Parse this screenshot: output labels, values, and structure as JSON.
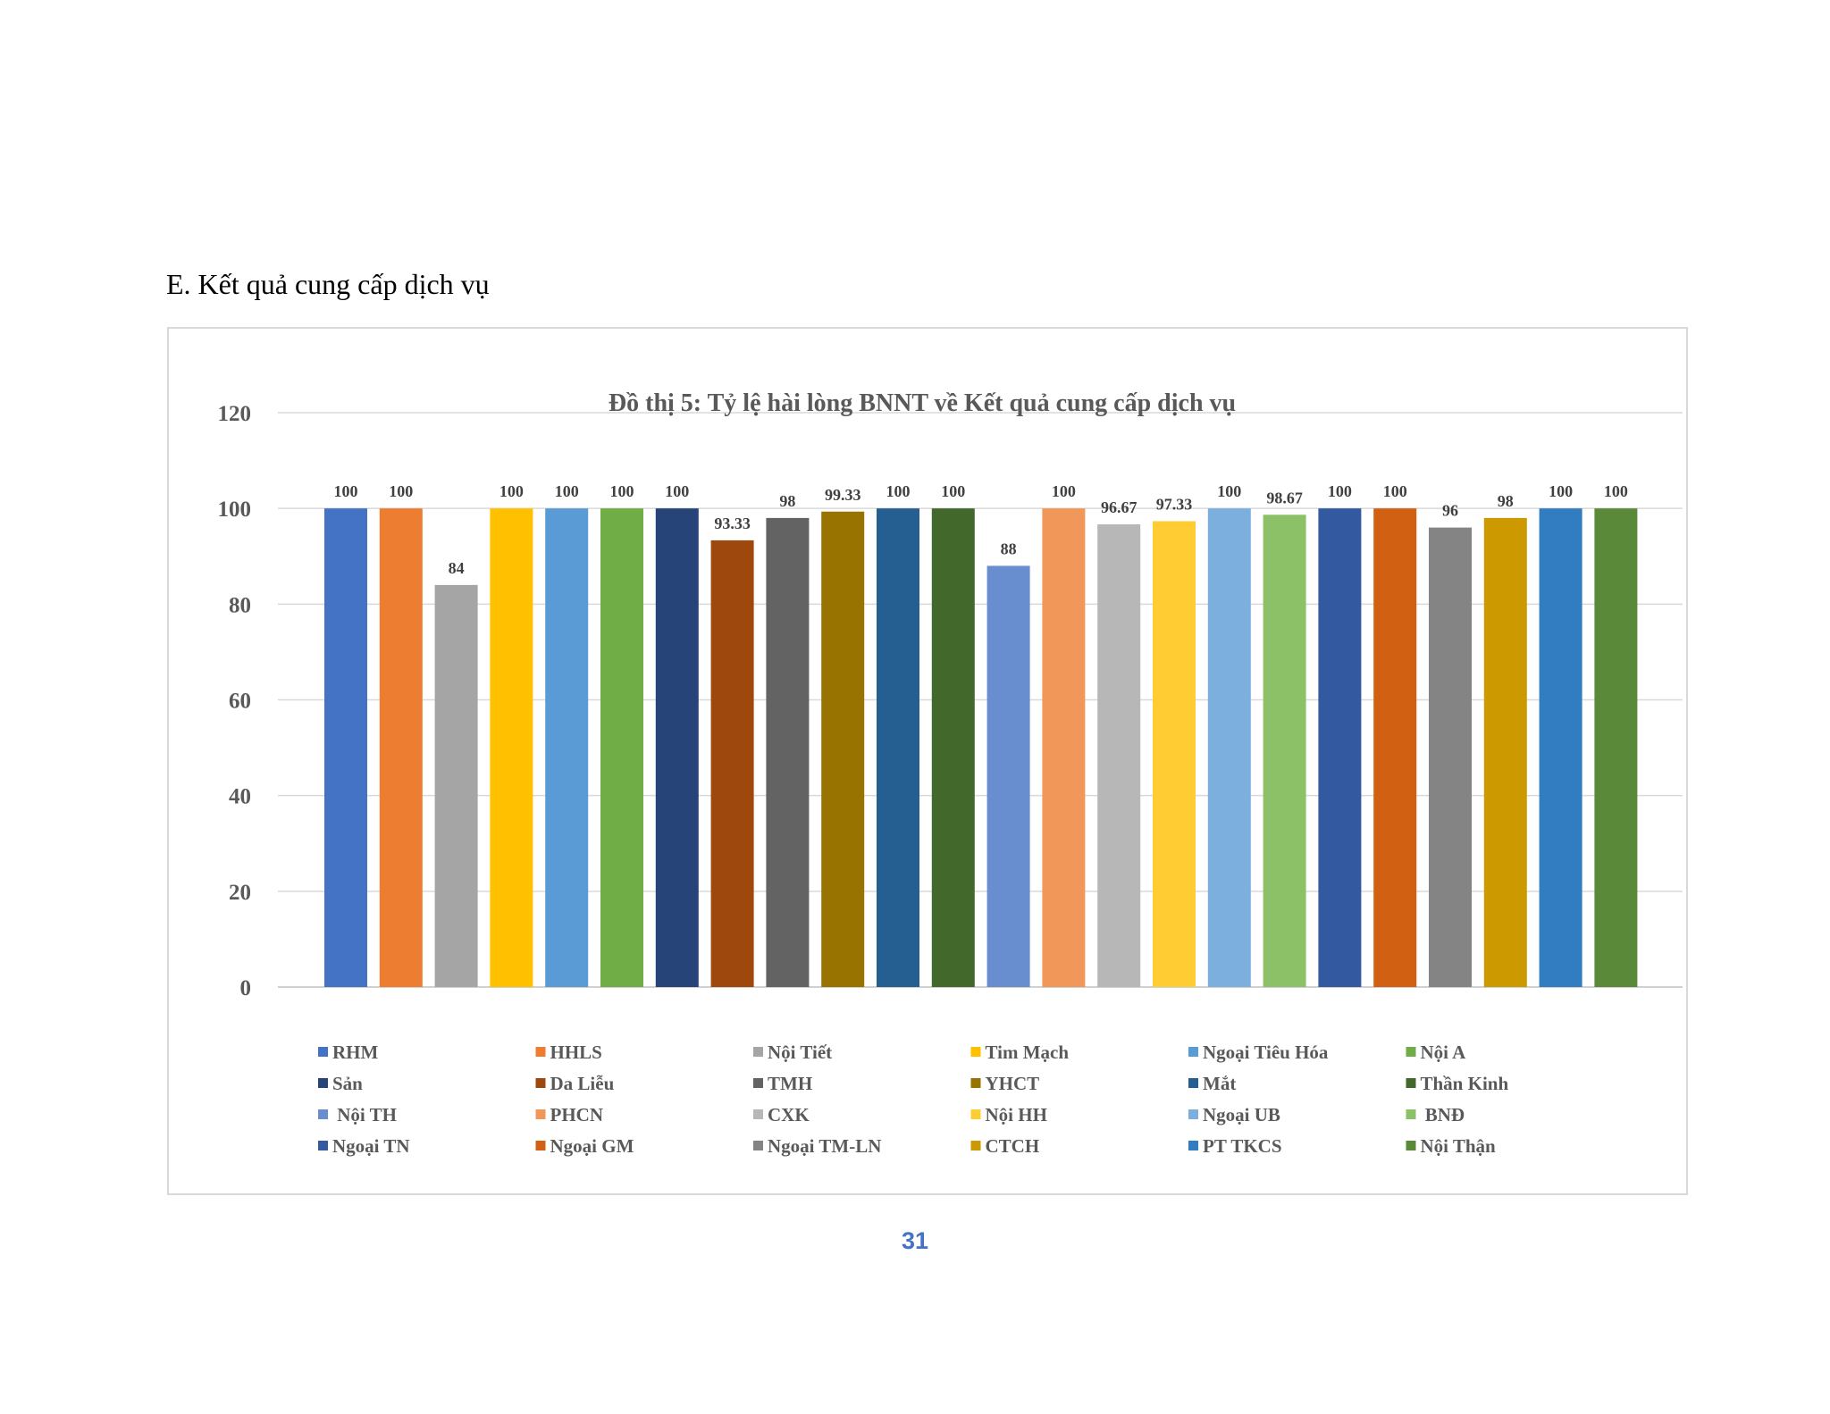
{
  "heading": "E. Kết quả cung cấp dịch vụ",
  "page_number": "31",
  "chart_data": {
    "type": "bar",
    "title": "Đồ thị 5: Tỷ lệ hài lòng BNNT về Kết quả cung cấp dịch vụ",
    "xlabel": "",
    "ylabel": "",
    "ylim": [
      0,
      120
    ],
    "yticks": [
      "0",
      "20",
      "40",
      "60",
      "80",
      "100",
      "120"
    ],
    "grid": true,
    "legend_position": "bottom",
    "data_labels": true,
    "series": [
      {
        "name": "RHM",
        "value": 100,
        "label": "100",
        "color": "#4472c4"
      },
      {
        "name": "HHLS",
        "value": 100,
        "label": "100",
        "color": "#ed7d31"
      },
      {
        "name": "Nội Tiết",
        "value": 84,
        "label": "84",
        "color": "#a5a5a5"
      },
      {
        "name": "Tim Mạch",
        "value": 100,
        "label": "100",
        "color": "#ffc000"
      },
      {
        "name": "Ngoại Tiêu Hóa",
        "value": 100,
        "label": "100",
        "color": "#5b9bd5"
      },
      {
        "name": "Nội A",
        "value": 100,
        "label": "100",
        "color": "#70ad47"
      },
      {
        "name": "Sản",
        "value": 100,
        "label": "100",
        "color": "#264478"
      },
      {
        "name": "Da Liễu",
        "value": 93.33,
        "label": "93.33",
        "color": "#9e480e"
      },
      {
        "name": "TMH",
        "value": 98,
        "label": "98",
        "color": "#636363"
      },
      {
        "name": "YHCT",
        "value": 99.33,
        "label": "99.33",
        "color": "#997300"
      },
      {
        "name": "Mắt",
        "value": 100,
        "label": "100",
        "color": "#255e91"
      },
      {
        "name": "Thần Kinh",
        "value": 100,
        "label": "100",
        "color": "#43682b"
      },
      {
        "name": " Nội TH",
        "value": 88,
        "label": "88",
        "color": "#698ed0"
      },
      {
        "name": "PHCN",
        "value": 100,
        "label": "100",
        "color": "#f1975a"
      },
      {
        "name": "CXK",
        "value": 96.67,
        "label": "96.67",
        "color": "#b7b7b7"
      },
      {
        "name": "Nội HH",
        "value": 97.33,
        "label": "97.33",
        "color": "#ffcd33"
      },
      {
        "name": "Ngoại UB",
        "value": 100,
        "label": "100",
        "color": "#7cafdd"
      },
      {
        "name": " BNĐ",
        "value": 98.67,
        "label": "98.67",
        "color": "#8cc168"
      },
      {
        "name": "Ngoại TN",
        "value": 100,
        "label": "100",
        "color": "#335aa1"
      },
      {
        "name": "Ngoại GM",
        "value": 100,
        "label": "100",
        "color": "#d26012"
      },
      {
        "name": "Ngoại TM-LN",
        "value": 96,
        "label": "96",
        "color": "#848484"
      },
      {
        "name": "CTCH",
        "value": 98,
        "label": "98",
        "color": "#cc9a00"
      },
      {
        "name": "PT TKCS",
        "value": 100,
        "label": "100",
        "color": "#327dc2"
      },
      {
        "name": "Nội Thận",
        "value": 100,
        "label": "100",
        "color": "#5a8a39"
      }
    ]
  }
}
